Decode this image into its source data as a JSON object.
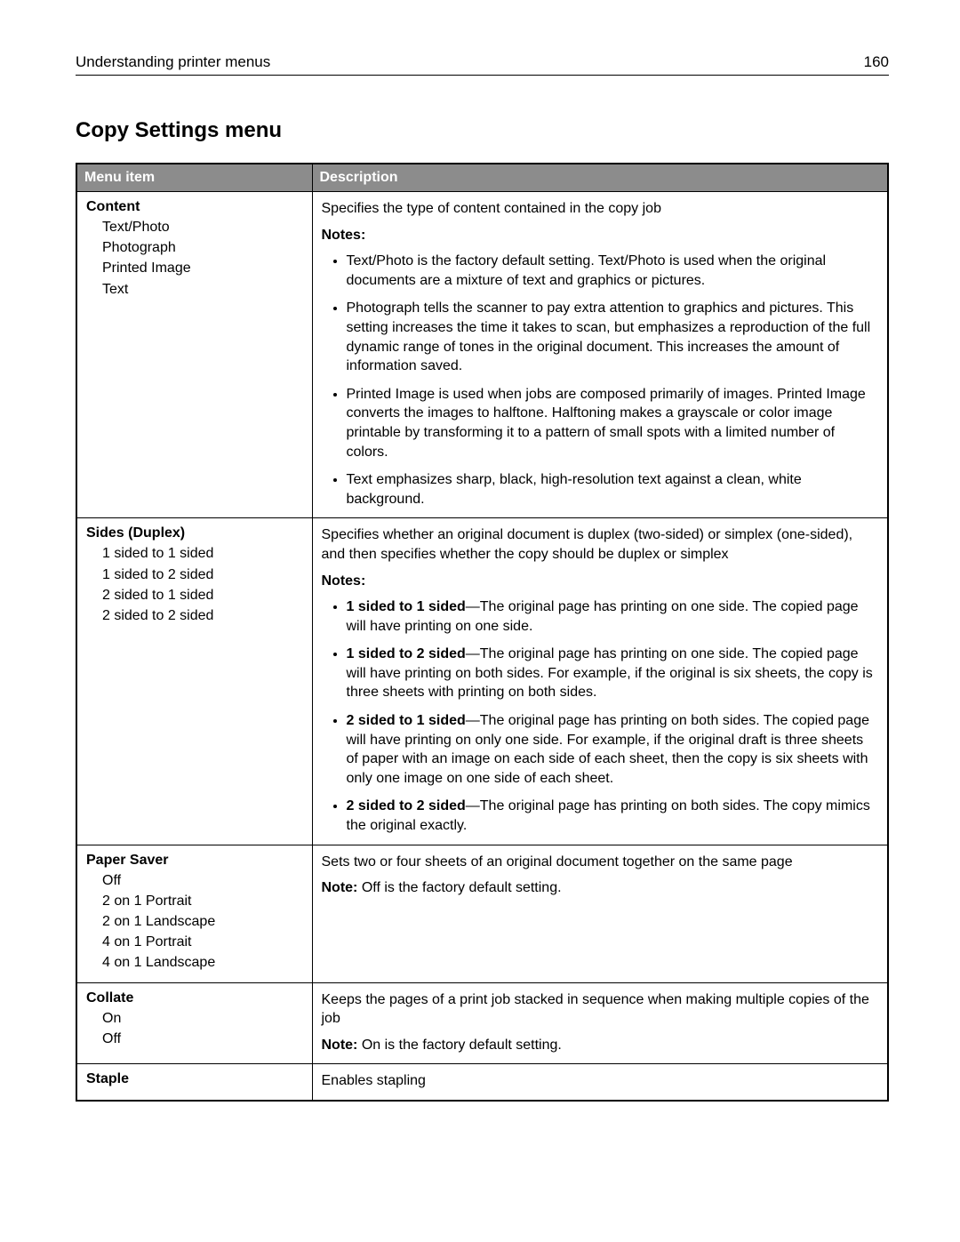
{
  "header": {
    "running_title": "Understanding printer menus",
    "page_number": "160"
  },
  "section_title": "Copy Settings menu",
  "table": {
    "headers": {
      "menu": "Menu item",
      "desc": "Description"
    },
    "rows": [
      {
        "menu_title": "Content",
        "options": [
          "Text/Photo",
          "Photograph",
          "Printed Image",
          "Text"
        ],
        "lead": "Specifies the type of content contained in the copy job",
        "notes_label": "Notes:",
        "notes": [
          {
            "plain": "Text/Photo is the factory default setting. Text/Photo is used when the original documents are a mixture of text and graphics or pictures."
          },
          {
            "plain": "Photograph tells the scanner to pay extra attention to graphics and pictures. This setting increases the time it takes to scan, but emphasizes a reproduction of the full dynamic range of tones in the original document. This increases the amount of information saved."
          },
          {
            "plain": "Printed Image is used when jobs are composed primarily of images. Printed Image converts the images to halftone. Halftoning makes a grayscale or color image printable by transforming it to a pattern of small spots with a limited number of colors."
          },
          {
            "plain": "Text emphasizes sharp, black, high-resolution text against a clean, white background."
          }
        ]
      },
      {
        "menu_title": "Sides (Duplex)",
        "options": [
          "1 sided to 1 sided",
          "1 sided to 2 sided",
          "2 sided to 1 sided",
          "2 sided to 2 sided"
        ],
        "lead": "Specifies whether an original document is duplex (two-sided) or simplex (one-sided), and then specifies whether the copy should be duplex or simplex",
        "notes_label": "Notes:",
        "notes": [
          {
            "bold": "1 sided to 1 sided",
            "rest": "—The original page has printing on one side. The copied page will have printing on one side."
          },
          {
            "bold": "1 sided to 2 sided",
            "rest": "—The original page has printing on one side. The copied page will have printing on both sides. For example, if the original is six sheets, the copy is three sheets with printing on both sides."
          },
          {
            "bold": "2 sided to 1 sided",
            "rest": "—The original page has printing on both sides. The copied page will have printing on only one side. For example, if the original draft is three sheets of paper with an image on each side of each sheet, then the copy is six sheets with only one image on one side of each sheet."
          },
          {
            "bold": "2 sided to 2 sided",
            "rest": "—The original page has printing on both sides. The copy mimics the original exactly."
          }
        ]
      },
      {
        "menu_title": "Paper Saver",
        "options": [
          "Off",
          "2 on 1 Portrait",
          "2 on 1 Landscape",
          "4 on 1 Portrait",
          "4 on 1 Landscape"
        ],
        "lead": "Sets two or four sheets of an original document together on the same page",
        "note_inline": {
          "label": "Note:",
          "text": " Off is the factory default setting."
        }
      },
      {
        "menu_title": "Collate",
        "options": [
          "On",
          "Off"
        ],
        "lead": "Keeps the pages of a print job stacked in sequence when making multiple copies of the job",
        "note_inline": {
          "label": "Note:",
          "text": " On is the factory default setting."
        }
      },
      {
        "menu_title": "Staple",
        "options": [],
        "lead": "Enables stapling"
      }
    ]
  }
}
